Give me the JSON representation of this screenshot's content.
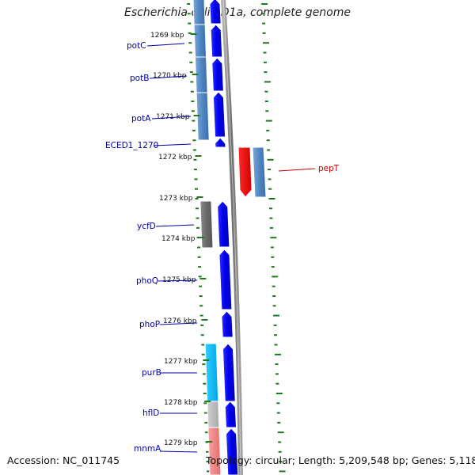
{
  "title": "Escherichia coli ED1a, complete genome",
  "footer": {
    "accession": "Accession: NC_011745",
    "stats": "Topology: circular; Length: 5,209,548 bp; Genes: 5,118"
  },
  "colors": {
    "forward_gene": "#0000ee",
    "rrna_like": "#4f86c2",
    "pseudo": "#707070",
    "trna": "#00b8f0",
    "ribosomal": "#bdbdbd",
    "other": "#f08080",
    "highlight": "#ee0000",
    "tick": "#1f7a1f",
    "backbone": "#888888",
    "label_blue": "#0000aa",
    "label_red": "#cc0000"
  },
  "kbp_ticks": [
    {
      "label": "1269 kbp"
    },
    {
      "label": "1270 kbp"
    },
    {
      "label": "1271 kbp"
    },
    {
      "label": "1272 kbp"
    },
    {
      "label": "1273 kbp"
    },
    {
      "label": "1274 kbp"
    },
    {
      "label": "1275 kbp"
    },
    {
      "label": "1276 kbp"
    },
    {
      "label": "1277 kbp"
    },
    {
      "label": "1278 kbp"
    },
    {
      "label": "1279 kbp"
    }
  ],
  "gene_labels": [
    {
      "name": "potC",
      "color": "blue"
    },
    {
      "name": "potB",
      "color": "blue"
    },
    {
      "name": "potA",
      "color": "blue"
    },
    {
      "name": "ECED1_1270",
      "color": "blue"
    },
    {
      "name": "pepT",
      "color": "red"
    },
    {
      "name": "ycfD",
      "color": "blue"
    },
    {
      "name": "phoQ",
      "color": "blue"
    },
    {
      "name": "phoP",
      "color": "blue"
    },
    {
      "name": "purB",
      "color": "blue"
    },
    {
      "name": "hflD",
      "color": "blue"
    },
    {
      "name": "mnmA",
      "color": "blue"
    }
  ]
}
